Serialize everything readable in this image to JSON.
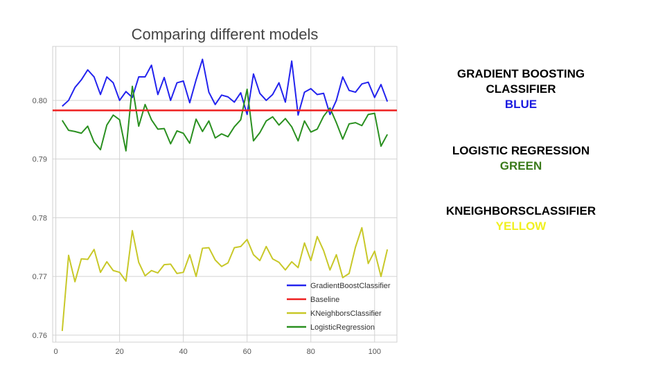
{
  "chart_data": {
    "type": "line",
    "title": "Comparing different models",
    "xlabel": "",
    "ylabel": "",
    "xlim": [
      -1,
      107
    ],
    "ylim": [
      0.7588,
      0.8092
    ],
    "x_ticks": [
      0,
      20,
      40,
      60,
      80,
      100
    ],
    "x_tick_labels": [
      "0",
      "20",
      "40",
      "60",
      "80",
      "100"
    ],
    "y_ticks": [
      0.76,
      0.77,
      0.78,
      0.79,
      0.8
    ],
    "y_tick_labels": [
      "0.76",
      "0.77",
      "0.78",
      "0.79",
      "0.80"
    ],
    "grid": true,
    "legend_position": "lower-right",
    "x": [
      2,
      4,
      6,
      8,
      10,
      12,
      14,
      16,
      18,
      20,
      22,
      24,
      26,
      28,
      30,
      32,
      34,
      36,
      38,
      40,
      42,
      44,
      46,
      48,
      50,
      52,
      54,
      56,
      58,
      60,
      62,
      64,
      66,
      68,
      70,
      72,
      74,
      76,
      78,
      80,
      82,
      84,
      86,
      88,
      90,
      92,
      94,
      96,
      98,
      100,
      102,
      104
    ],
    "series": [
      {
        "name": "GradientBoostClassifier",
        "color": "#2323ee",
        "values": [
          0.799,
          0.8,
          0.8022,
          0.8035,
          0.8052,
          0.804,
          0.801,
          0.804,
          0.803,
          0.8,
          0.8015,
          0.8005,
          0.804,
          0.804,
          0.806,
          0.801,
          0.8039,
          0.8,
          0.803,
          0.8033,
          0.7996,
          0.8035,
          0.807,
          0.8014,
          0.7993,
          0.8009,
          0.8006,
          0.7997,
          0.8013,
          0.7976,
          0.8045,
          0.8012,
          0.8,
          0.801,
          0.803,
          0.7997,
          0.8067,
          0.7975,
          0.8014,
          0.802,
          0.801,
          0.8012,
          0.7976,
          0.8,
          0.804,
          0.8017,
          0.8014,
          0.8028,
          0.8031,
          0.8005,
          0.8027,
          0.7998
        ]
      },
      {
        "name": "Baseline",
        "color": "#ee2020",
        "values": [
          0.7983,
          0.7983,
          0.7983,
          0.7983,
          0.7983,
          0.7983,
          0.7983,
          0.7983,
          0.7983,
          0.7983,
          0.7983,
          0.7983,
          0.7983,
          0.7983,
          0.7983,
          0.7983,
          0.7983,
          0.7983,
          0.7983,
          0.7983,
          0.7983,
          0.7983,
          0.7983,
          0.7983,
          0.7983,
          0.7983,
          0.7983,
          0.7983,
          0.7983,
          0.7983,
          0.7983,
          0.7983,
          0.7983,
          0.7983,
          0.7983,
          0.7983,
          0.7983,
          0.7983,
          0.7983,
          0.7983,
          0.7983,
          0.7983,
          0.7983,
          0.7983,
          0.7983,
          0.7983,
          0.7983,
          0.7983,
          0.7983,
          0.7983,
          0.7983,
          0.7983
        ]
      },
      {
        "name": "KNeighborsClassifier",
        "color": "#c8c828",
        "values": [
          0.7607,
          0.7736,
          0.7691,
          0.773,
          0.7729,
          0.7746,
          0.7707,
          0.7725,
          0.771,
          0.7707,
          0.7692,
          0.7778,
          0.7724,
          0.7701,
          0.771,
          0.7706,
          0.772,
          0.7721,
          0.7705,
          0.7707,
          0.7737,
          0.77,
          0.7748,
          0.7749,
          0.7728,
          0.7717,
          0.7723,
          0.7749,
          0.7751,
          0.7763,
          0.7737,
          0.7727,
          0.7751,
          0.773,
          0.7724,
          0.7711,
          0.7725,
          0.7715,
          0.7757,
          0.7727,
          0.7768,
          0.7744,
          0.7711,
          0.7737,
          0.7698,
          0.7705,
          0.775,
          0.7783,
          0.7722,
          0.7743,
          0.77,
          0.7746
        ]
      },
      {
        "name": "LogisticRegression",
        "color": "#2a9020",
        "values": [
          0.7966,
          0.7949,
          0.7947,
          0.7944,
          0.7956,
          0.7929,
          0.7916,
          0.7958,
          0.7975,
          0.7967,
          0.7914,
          0.8024,
          0.7956,
          0.7993,
          0.7967,
          0.7951,
          0.7952,
          0.7926,
          0.7948,
          0.7944,
          0.7927,
          0.7968,
          0.7947,
          0.7965,
          0.7936,
          0.7943,
          0.7938,
          0.7955,
          0.7967,
          0.8019,
          0.7931,
          0.7945,
          0.7965,
          0.7972,
          0.7958,
          0.7969,
          0.7955,
          0.7931,
          0.7965,
          0.7946,
          0.7951,
          0.7973,
          0.7987,
          0.7962,
          0.7934,
          0.796,
          0.7962,
          0.7957,
          0.7976,
          0.7978,
          0.7922,
          0.7942
        ]
      }
    ]
  },
  "annotations": [
    {
      "lines": [
        "GRADIENT BOOSTING",
        "CLASSIFIER"
      ],
      "color_word": "BLUE",
      "color": "#1a1ae0"
    },
    {
      "lines": [
        "LOGISTIC REGRESSION"
      ],
      "color_word": "GREEN",
      "color": "#3a7a1a"
    },
    {
      "lines": [
        "KNEIGHBORSCLASSIFIER"
      ],
      "color_word": "YELLOW",
      "color": "#f0f020"
    }
  ]
}
